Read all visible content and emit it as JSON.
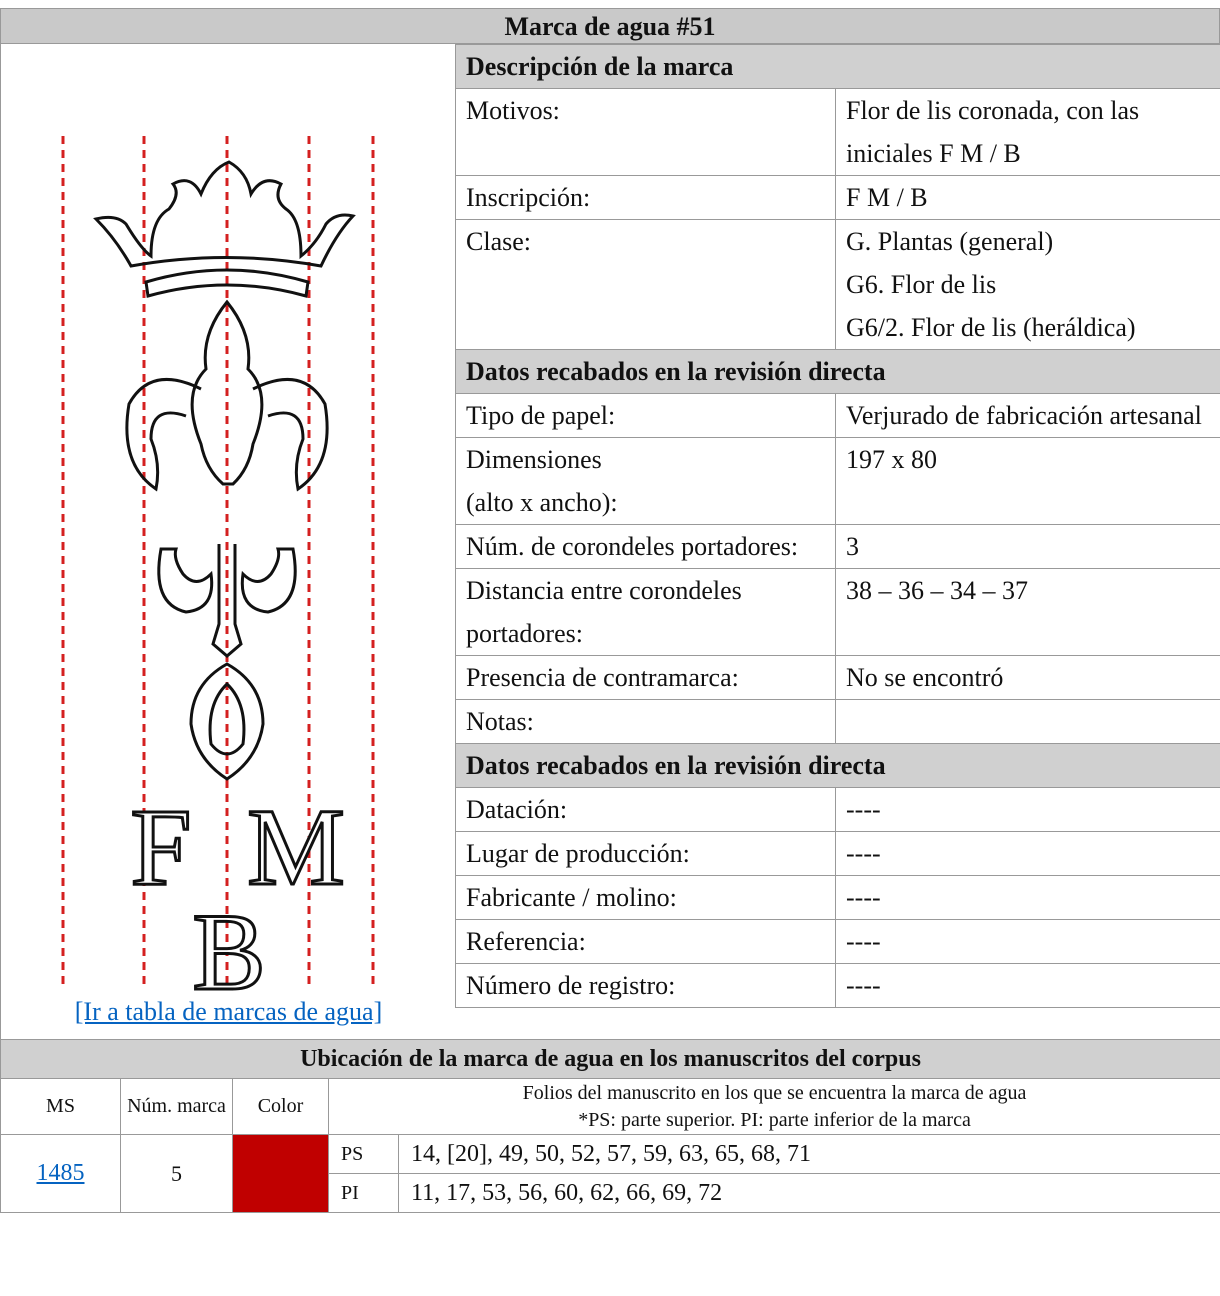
{
  "title": "Marca de agua #51",
  "image": {
    "letters": [
      "F",
      "M",
      "B"
    ]
  },
  "link": "[Ir a tabla de marcas de agua]",
  "sections": [
    {
      "heading": "Descripción de la marca",
      "rows": [
        {
          "label": "Motivos:",
          "value": "Flor de lis coronada, con las iniciales F M / B"
        },
        {
          "label": "Inscripción:",
          "value": "F M / B"
        },
        {
          "label": "Clase:",
          "value": [
            "G. Plantas (general)",
            "G6. Flor de lis",
            "G6/2. Flor de lis (heráldica)"
          ]
        }
      ]
    },
    {
      "heading": "Datos recabados en la revisión directa",
      "rows": [
        {
          "label": "Tipo de papel:",
          "value": "Verjurado de fabricación artesanal"
        },
        {
          "label": [
            "Dimensiones",
            "(alto x ancho):"
          ],
          "value": "197 x 80"
        },
        {
          "label": "Núm. de corondeles portadores:",
          "value": "3"
        },
        {
          "label": "Distancia entre corondeles portadores:",
          "value": "38 – 36 – 34 – 37"
        },
        {
          "label": "Presencia de contramarca:",
          "value": "No se encontró"
        },
        {
          "label": "Notas:"
        }
      ]
    },
    {
      "heading": "Datos recabados en la revisión directa",
      "rows": [
        {
          "label": "Datación:",
          "value": "----"
        },
        {
          "label": "Lugar de producción:",
          "value": "----"
        },
        {
          "label": "Fabricante / molino:",
          "value": "----"
        },
        {
          "label": "Referencia:",
          "value": "----"
        },
        {
          "label": "Número de registro:",
          "value": "----"
        }
      ]
    }
  ],
  "location": {
    "heading": "Ubicación de la marca de agua en los manuscritos del corpus",
    "columns": [
      "MS",
      "Núm. marca",
      "Color",
      [
        "Folios del manuscrito en los que se encuentra la marca de agua",
        "*PS: parte superior. PI: parte inferior de la marca"
      ]
    ],
    "rows": [
      {
        "ms": "1485",
        "marca": "5",
        "color": "#c00000",
        "parts": [
          {
            "label": "PS",
            "folios": "14, [20], 49, 50, 52, 57, 59, 63, 65, 68, 71"
          },
          {
            "label": "PI",
            "folios": "11, 17, 53, 56, 60, 62, 66, 69, 72"
          }
        ]
      }
    ]
  }
}
